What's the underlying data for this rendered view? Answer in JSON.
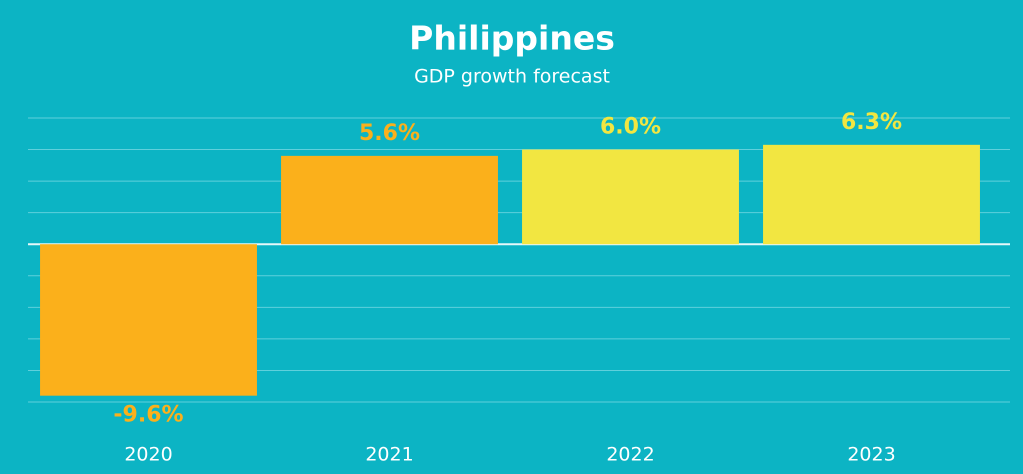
{
  "chart_data": {
    "type": "bar",
    "title": "Philippines",
    "subtitle": "GDP growth forecast",
    "categories": [
      "2020",
      "2021",
      "2022",
      "2023"
    ],
    "values": [
      -9.6,
      5.6,
      6.0,
      6.3
    ],
    "value_labels": [
      "-9.6%",
      "5.6%",
      "6.0%",
      "6.3%"
    ],
    "colors": [
      "#fbb01b",
      "#fbb01b",
      "#f2e641",
      "#f2e641"
    ],
    "ylim": [
      -10,
      8
    ],
    "yticks": [
      -10,
      -8,
      -6,
      -4,
      -2,
      0,
      2,
      4,
      6,
      8
    ],
    "grid": true
  }
}
